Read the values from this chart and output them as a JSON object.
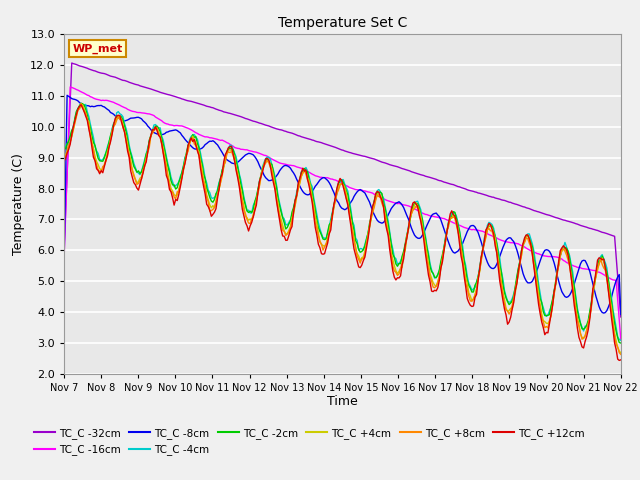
{
  "title": "Temperature Set C",
  "xlabel": "Time",
  "ylabel": "Temperature (C)",
  "ylim": [
    2.0,
    13.0
  ],
  "yticks": [
    2.0,
    3.0,
    4.0,
    5.0,
    6.0,
    7.0,
    8.0,
    9.0,
    10.0,
    11.0,
    12.0,
    13.0
  ],
  "date_labels": [
    "Nov 7",
    "Nov 8",
    "Nov 9",
    "Nov 10",
    "Nov 11",
    "Nov 12",
    "Nov 13",
    "Nov 14",
    "Nov 15",
    "Nov 16",
    "Nov 17",
    "Nov 18",
    "Nov 19",
    "Nov 20",
    "Nov 21",
    "Nov 22"
  ],
  "wp_met_label": "WP_met",
  "wp_met_box_facecolor": "#ffffcc",
  "wp_met_box_edgecolor": "#cc8800",
  "wp_met_text_color": "#cc0000",
  "series": [
    {
      "label": "TC_C -32cm",
      "color": "#9900cc"
    },
    {
      "label": "TC_C -16cm",
      "color": "#ff00ff"
    },
    {
      "label": "TC_C -8cm",
      "color": "#0000ee"
    },
    {
      "label": "TC_C -4cm",
      "color": "#00cccc"
    },
    {
      "label": "TC_C -2cm",
      "color": "#00cc00"
    },
    {
      "label": "TC_C +4cm",
      "color": "#cccc00"
    },
    {
      "label": "TC_C +8cm",
      "color": "#ff8800"
    },
    {
      "label": "TC_C +12cm",
      "color": "#dd0000"
    }
  ],
  "linewidth": 1.0,
  "background_color": "#e8e8e8",
  "fig_facecolor": "#f0f0f0",
  "grid_color": "#ffffff",
  "figsize": [
    6.4,
    4.8
  ],
  "dpi": 100
}
